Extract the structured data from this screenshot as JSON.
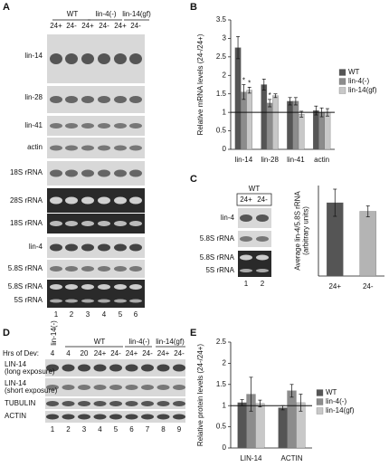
{
  "panels": {
    "A": {
      "letter": "A",
      "groups": [
        "WT",
        "lin-4(-)",
        "lin-14(gf)"
      ],
      "lanes": [
        "24+",
        "24-",
        "24+",
        "24-",
        "24+",
        "24-"
      ],
      "rows": [
        "lin-14",
        "lin-28",
        "lin-41",
        "actin",
        "18S rRNA",
        "28S rRNA",
        "18S rRNA",
        "lin-4",
        "5.8S rRNA",
        "5.8S rRNA",
        "5S rRNA"
      ],
      "lane_numbers": [
        "1",
        "2",
        "3",
        "4",
        "5",
        "6"
      ]
    },
    "C": {
      "letter": "C",
      "groups": [
        "WT"
      ],
      "lanes": [
        "24+",
        "24-"
      ],
      "rows": [
        "lin-4",
        "5.8S rRNA",
        "5.8S rRNA",
        "5S rRNA"
      ],
      "lane_numbers": [
        "1",
        "2"
      ]
    },
    "D": {
      "letter": "D",
      "groups": [
        "lin-14(-)",
        "WT",
        "lin-4(-)",
        "lin-14(gf)"
      ],
      "lane_title": "Hrs of Dev:",
      "lanes": [
        "4",
        "4",
        "20",
        "24+",
        "24-",
        "24+",
        "24-",
        "24+",
        "24-"
      ],
      "rows": [
        "LIN-14",
        "LIN-14",
        "TUBULIN",
        "ACTIN"
      ],
      "sublabels": [
        "(long exposure)",
        "(short exposure)"
      ],
      "lane_numbers": [
        "1",
        "2",
        "3",
        "4",
        "5",
        "6",
        "7",
        "8",
        "9"
      ]
    }
  },
  "chart_data": [
    {
      "type": "bar",
      "panel": "B",
      "ylabel": [
        "Relative mRNA levels (24-/24+)"
      ],
      "categories": [
        "lin-14",
        "lin-28",
        "lin-41",
        "actin"
      ],
      "series": [
        {
          "name": "WT",
          "color": "#555555",
          "values": [
            2.75,
            1.75,
            1.3,
            1.05
          ],
          "errors": [
            0.3,
            0.15,
            0.1,
            0.12
          ]
        },
        {
          "name": "lin-4(-)",
          "color": "#8c8c8c",
          "values": [
            1.55,
            1.25,
            1.3,
            1.0
          ],
          "errors": [
            0.2,
            0.1,
            0.1,
            0.12
          ]
        },
        {
          "name": "lin-14(gf)",
          "color": "#c8c8c8",
          "values": [
            1.6,
            1.45,
            0.95,
            1.0
          ],
          "errors": [
            0.08,
            0.05,
            0.08,
            0.1
          ]
        }
      ],
      "ylim": [
        0,
        3.5
      ],
      "yticks": [
        0,
        0.5,
        1,
        1.5,
        2,
        2.5,
        3,
        3.5
      ],
      "reference_line": 1,
      "annotations": [
        "*",
        "*",
        "*"
      ],
      "legend": "right"
    },
    {
      "type": "bar",
      "panel": "C",
      "ylabel": [
        "Average lin-4/5.8S rRNA",
        "(arbitrary units)"
      ],
      "categories": [
        "24+",
        "24-"
      ],
      "values": [
        1.62,
        1.43
      ],
      "errors": [
        0.3,
        0.12
      ],
      "colors": [
        "#555555",
        "#b4b4b4"
      ],
      "ylim": [
        0,
        2
      ]
    },
    {
      "type": "bar",
      "panel": "E",
      "ylabel": [
        "Relative protein levels (24-/24+)"
      ],
      "categories": [
        "LIN-14",
        "ACTIN"
      ],
      "series": [
        {
          "name": "WT",
          "color": "#555555",
          "values": [
            1.07,
            0.95
          ],
          "errors": [
            0.07,
            0.05
          ]
        },
        {
          "name": "lin-4(-)",
          "color": "#8c8c8c",
          "values": [
            1.27,
            1.35
          ],
          "errors": [
            0.4,
            0.15
          ]
        },
        {
          "name": "lin-14(gf)",
          "color": "#c8c8c8",
          "values": [
            1.05,
            1.07
          ],
          "errors": [
            0.08,
            0.2
          ]
        }
      ],
      "ylim": [
        0,
        2.5
      ],
      "yticks": [
        0,
        0.5,
        1,
        1.5,
        2,
        2.5
      ],
      "reference_line": 1,
      "legend": "right"
    }
  ]
}
